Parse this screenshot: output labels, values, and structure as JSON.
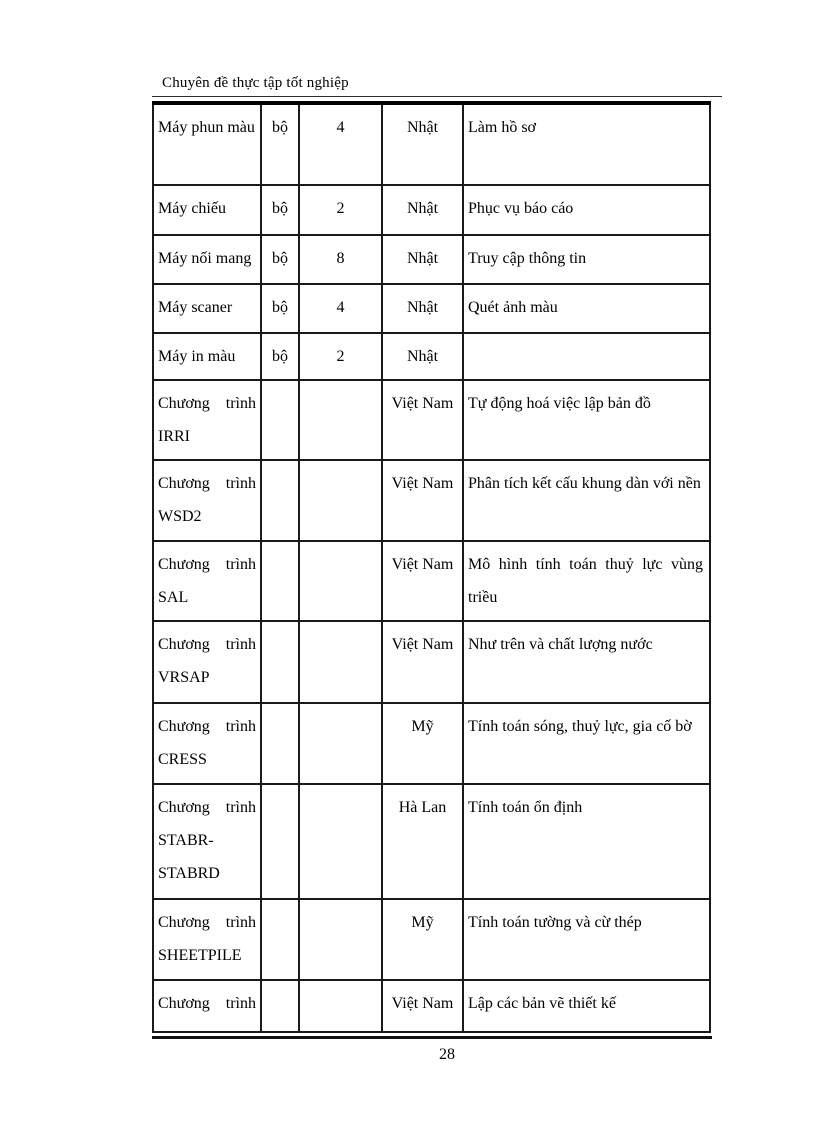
{
  "page": {
    "header": "Chuyên đề thực tập tốt nghiệp",
    "page_number": "28"
  },
  "table": {
    "rows": [
      {
        "cells": [
          "Máy phun màu",
          "bộ",
          "4",
          "Nhật",
          "Làm hồ sơ"
        ]
      },
      {
        "cells": [
          "Máy chiếu",
          "bộ",
          "2",
          "Nhật",
          "Phục vụ báo cáo"
        ]
      },
      {
        "cells": [
          "Máy nối mang",
          "bộ",
          "8",
          "Nhật",
          "Truy cập thông tin"
        ]
      },
      {
        "cells": [
          "Máy scaner",
          "bộ",
          "4",
          "Nhật",
          "Quét ảnh màu"
        ]
      },
      {
        "cells": [
          "Máy in màu",
          "bộ",
          "2",
          "Nhật",
          ""
        ]
      },
      {
        "cells": [
          "Chương trình IRRI",
          "",
          "",
          "Việt Nam",
          "Tự động hoá việc lập bản đồ"
        ]
      },
      {
        "cells": [
          "Chương trình WSD2",
          "",
          "",
          "Việt Nam",
          "Phân tích kết cấu khung dàn với nền"
        ]
      },
      {
        "cells": [
          "Chương trình SAL",
          "",
          "",
          "Việt Nam",
          "Mô hình tính toán thuỷ lực vùng triều"
        ]
      },
      {
        "cells": [
          "Chương trình VRSAP",
          "",
          "",
          "Việt Nam",
          "Như trên và chất lượng nước"
        ]
      },
      {
        "cells": [
          "Chương trình CRESS",
          "",
          "",
          "Mỹ",
          "Tính toán sóng, thuỷ lực, gia cố bờ"
        ]
      },
      {
        "cells": [
          "Chương trình STABR- STABRD",
          "",
          "",
          "Hà Lan",
          "Tính toán ổn định"
        ]
      },
      {
        "cells": [
          "Chương trình SHEETPILE",
          "",
          "",
          "Mỹ",
          "Tính toán tường và cừ thép"
        ]
      },
      {
        "cells": [
          "Chương trình",
          "",
          "",
          "Việt Nam",
          "Lập các bản vẽ thiết kế"
        ]
      }
    ]
  }
}
